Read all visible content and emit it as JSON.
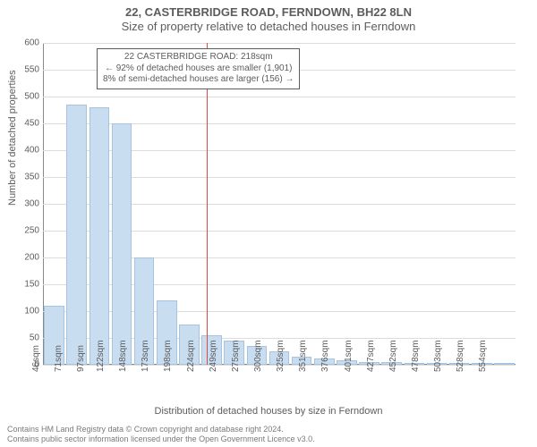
{
  "title": {
    "line1": "22, CASTERBRIDGE ROAD, FERNDOWN, BH22 8LN",
    "line2": "Size of property relative to detached houses in Ferndown"
  },
  "axes": {
    "y_label": "Number of detached properties",
    "x_label": "Distribution of detached houses by size in Ferndown"
  },
  "chart": {
    "type": "bar",
    "ylim": [
      0,
      600
    ],
    "ytick_step": 50,
    "y_ticks": [
      0,
      50,
      100,
      150,
      200,
      250,
      300,
      350,
      400,
      450,
      500,
      550,
      600
    ],
    "x_labels": [
      "46sqm",
      "71sqm",
      "97sqm",
      "122sqm",
      "148sqm",
      "173sqm",
      "198sqm",
      "224sqm",
      "249sqm",
      "275sqm",
      "300sqm",
      "325sqm",
      "351sqm",
      "376sqm",
      "401sqm",
      "427sqm",
      "452sqm",
      "478sqm",
      "503sqm",
      "528sqm",
      "554sqm"
    ],
    "values": [
      110,
      485,
      480,
      450,
      200,
      120,
      75,
      55,
      45,
      35,
      25,
      15,
      12,
      8,
      5,
      5,
      3,
      3,
      2,
      2,
      1
    ],
    "bar_fill": "#c9ddf0",
    "bar_border": "#a6c3e0",
    "grid_color": "#dcdcdc",
    "background_color": "#ffffff",
    "marker_value_sqm": 218,
    "marker_color": "#d94a4a"
  },
  "annotation": {
    "line1": "22 CASTERBRIDGE ROAD: 218sqm",
    "line2": "← 92% of detached houses are smaller (1,901)",
    "line3": "8% of semi-detached houses are larger (156) →"
  },
  "footer": {
    "line1": "Contains HM Land Registry data © Crown copyright and database right 2024.",
    "line2": "Contains public sector information licensed under the Open Government Licence v3.0."
  }
}
